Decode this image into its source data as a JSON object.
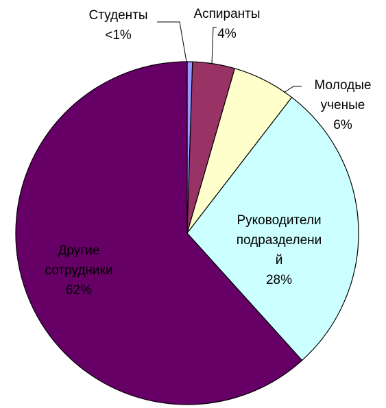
{
  "chart_data": {
    "type": "pie",
    "categories": [
      "Студенты",
      "Аспиранты",
      "Молодые ученые",
      "Руководители подразделений",
      "Другие сотрудники"
    ],
    "values": [
      0.5,
      4,
      6,
      28,
      62
    ],
    "value_labels": [
      "<1%",
      "4%",
      "6%",
      "28%",
      "62%"
    ],
    "colors": [
      "#9999ff",
      "#993366",
      "#ffffcc",
      "#ccffff",
      "#660066"
    ]
  }
}
